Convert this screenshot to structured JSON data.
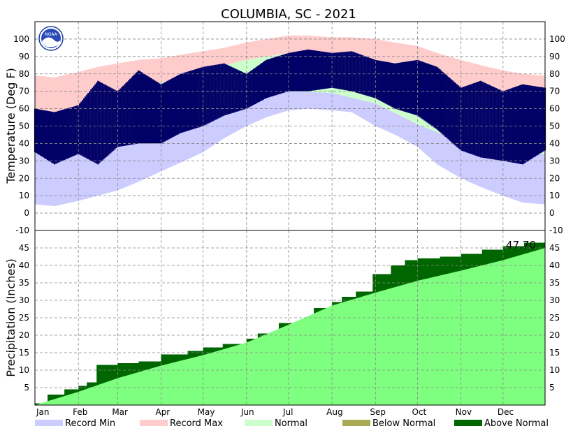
{
  "chart_data": [
    {
      "type": "area",
      "panel": "temperature",
      "title": "COLUMBIA, SC - 2021",
      "ylabel": "Temperature (Deg F)",
      "ylim": [
        -10,
        110
      ],
      "yticks": [
        "-10",
        "0",
        "10",
        "20",
        "30",
        "40",
        "50",
        "60",
        "70",
        "80",
        "90",
        "100"
      ],
      "grid": true,
      "series": [
        {
          "name": "Record Max",
          "x": [
            1,
            15,
            32,
            46,
            60,
            75,
            91,
            105,
            121,
            136,
            152,
            166,
            182,
            196,
            213,
            227,
            244,
            258,
            274,
            288,
            305,
            319,
            335,
            349,
            365
          ],
          "values": [
            79,
            78,
            81,
            84,
            86,
            88,
            89,
            91,
            93,
            95,
            98,
            100,
            102,
            102,
            101,
            101,
            100,
            98,
            96,
            92,
            88,
            85,
            82,
            80,
            79
          ]
        },
        {
          "name": "Normal",
          "x": [
            1,
            32,
            60,
            91,
            121,
            152,
            182,
            213,
            244,
            274,
            305,
            335,
            365
          ],
          "values": [
            56,
            59,
            66,
            75,
            82,
            88,
            92,
            91,
            85,
            77,
            67,
            59,
            56
          ]
        },
        {
          "name": "Normal Low",
          "x": [
            1,
            32,
            60,
            91,
            121,
            152,
            182,
            213,
            244,
            274,
            305,
            335,
            365
          ],
          "values": [
            34,
            36,
            42,
            49,
            58,
            66,
            70,
            69,
            63,
            51,
            41,
            36,
            34
          ]
        },
        {
          "name": "Record Min",
          "x": [
            1,
            15,
            32,
            46,
            60,
            75,
            91,
            105,
            121,
            136,
            152,
            166,
            182,
            196,
            213,
            227,
            244,
            258,
            274,
            288,
            305,
            319,
            335,
            349,
            365
          ],
          "values": [
            5,
            4,
            7,
            10,
            13,
            18,
            24,
            29,
            35,
            43,
            50,
            55,
            59,
            60,
            59,
            58,
            50,
            45,
            38,
            28,
            20,
            15,
            10,
            6,
            5
          ]
        },
        {
          "name": "Observed High",
          "x": [
            1,
            15,
            32,
            46,
            60,
            75,
            91,
            105,
            121,
            136,
            152,
            166,
            182,
            196,
            213,
            227,
            244,
            258,
            274,
            288,
            305,
            319,
            335,
            349,
            365
          ],
          "values": [
            60,
            58,
            62,
            76,
            70,
            82,
            74,
            80,
            84,
            86,
            80,
            88,
            92,
            94,
            92,
            93,
            88,
            86,
            88,
            84,
            72,
            76,
            70,
            74,
            72
          ]
        },
        {
          "name": "Observed Low",
          "x": [
            1,
            15,
            32,
            46,
            60,
            75,
            91,
            105,
            121,
            136,
            152,
            166,
            182,
            196,
            213,
            227,
            244,
            258,
            274,
            288,
            305,
            319,
            335,
            349,
            365
          ],
          "values": [
            35,
            28,
            34,
            28,
            38,
            40,
            40,
            46,
            50,
            56,
            60,
            66,
            70,
            70,
            72,
            70,
            66,
            60,
            56,
            48,
            36,
            32,
            30,
            28,
            36
          ]
        }
      ]
    },
    {
      "type": "area",
      "panel": "precipitation",
      "ylabel": "Precipitation (Inches)",
      "ylim": [
        0,
        50
      ],
      "yticks": [
        "5",
        "10",
        "15",
        "20",
        "25",
        "30",
        "35",
        "40",
        "45"
      ],
      "annotation": "47.70",
      "grid": true,
      "series": [
        {
          "name": "Normal",
          "x": [
            1,
            32,
            60,
            91,
            121,
            152,
            182,
            213,
            244,
            274,
            305,
            335,
            365
          ],
          "values": [
            0,
            3.8,
            7.7,
            11.3,
            14.3,
            17.9,
            23,
            28.5,
            32.2,
            35.6,
            38.5,
            41.5,
            45
          ]
        },
        {
          "name": "Observed",
          "x": [
            1,
            10,
            22,
            32,
            38,
            45,
            60,
            75,
            91,
            110,
            121,
            135,
            152,
            160,
            175,
            200,
            213,
            220,
            230,
            242,
            255,
            265,
            274,
            290,
            305,
            320,
            335,
            350,
            365
          ],
          "values": [
            0.5,
            3,
            4.5,
            5.5,
            6.5,
            11.5,
            12,
            12.5,
            14.5,
            15.5,
            16.5,
            17.5,
            19,
            20.5,
            23.5,
            27.8,
            29.5,
            31,
            32.5,
            37.5,
            40,
            41.5,
            42,
            42.5,
            43.3,
            44.5,
            45.5,
            46.5,
            47.7
          ]
        }
      ],
      "legend": [
        "Record Min",
        "Record Max",
        "Normal",
        "Below Normal",
        "Above Normal"
      ],
      "legend_placement": "bottom"
    }
  ],
  "x_axis": {
    "months": [
      "Jan",
      "Feb",
      "Mar",
      "Apr",
      "May",
      "Jun",
      "Jul",
      "Aug",
      "Sep",
      "Oct",
      "Nov",
      "Dec"
    ],
    "month_start_days": [
      1,
      32,
      60,
      91,
      121,
      152,
      182,
      213,
      244,
      274,
      305,
      335
    ],
    "xlim": [
      1,
      365
    ]
  },
  "colors": {
    "record_min": "#ccccff",
    "record_max": "#ffcccc",
    "normal_band": "#ccffcc",
    "below_normal": "#aaaa55",
    "above_normal": "#006600",
    "normal_precip": "#7fff7f",
    "observed_temp": "#000066",
    "grid": "#888888",
    "noaa_logo": "#1a3a9e"
  },
  "icons": {
    "logo": "noaa-logo-icon"
  },
  "logo_text": "NOAA"
}
